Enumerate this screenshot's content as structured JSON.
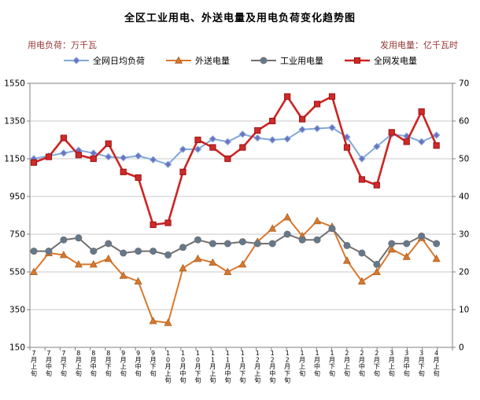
{
  "header": {
    "title": "全区工业用电、外送电量及用电负荷变化趋势图",
    "left_axis_unit": "用电负荷：万千瓦",
    "right_axis_unit": "发用电量：亿千瓦时"
  },
  "colors": {
    "title": "#000000",
    "unit_label": "#943634",
    "grid": "#c9c9c9",
    "axis": "#808080",
    "tick_label": "#000000",
    "background": "#ffffff"
  },
  "chart_data": {
    "type": "line",
    "title": "全区工业用电、外送电量及用电负荷变化趋势图",
    "grid": "horizontal",
    "legend_position": "top",
    "categories": [
      "7月上旬",
      "7月中旬",
      "7月下旬",
      "8月上旬",
      "8月中旬",
      "8月下旬",
      "9月上旬",
      "9月中旬",
      "9月下旬",
      "10月上旬",
      "10月中旬",
      "10月下旬",
      "11月上旬",
      "11月中旬",
      "11月下旬",
      "12月上旬",
      "12月中旬",
      "12月下旬",
      "1月上旬",
      "1月中旬",
      "1月下旬",
      "2月上旬",
      "2月中旬",
      "2月下旬",
      "3月上旬",
      "3月中旬",
      "3月下旬",
      "4月上旬"
    ],
    "left_axis": {
      "label": "用电负荷：万千瓦",
      "min": 150,
      "max": 1550,
      "step": 200,
      "ticks": [
        150,
        350,
        550,
        750,
        950,
        1150,
        1350,
        1550
      ]
    },
    "right_axis": {
      "label": "发用电量：亿千瓦时",
      "min": 0,
      "max": 70,
      "step": 10,
      "ticks": [
        0,
        10,
        20,
        30,
        40,
        50,
        60,
        70
      ]
    },
    "series": [
      {
        "name": "全网日均负荷",
        "axis": "left",
        "marker": "diamond",
        "color": "#7fa8dc",
        "marker_color": "#7170c0",
        "marker_stroke": "#7fa8dc",
        "width": 2,
        "values": [
          1150,
          1165,
          1180,
          1195,
          1180,
          1160,
          1155,
          1165,
          1145,
          1120,
          1200,
          1200,
          1255,
          1240,
          1280,
          1260,
          1250,
          1255,
          1305,
          1310,
          1315,
          1265,
          1150,
          1215,
          1280,
          1270,
          1240,
          1275
        ]
      },
      {
        "name": "外送电量",
        "axis": "right",
        "marker": "triangle",
        "color": "#d9772e",
        "marker_color": "#d9772e",
        "marker_stroke": "#a86324",
        "width": 2,
        "values": [
          20,
          25,
          24.5,
          22,
          22,
          23.5,
          19,
          17.5,
          7,
          6.5,
          21,
          23.5,
          22.5,
          20,
          22,
          28,
          31.5,
          34.5,
          29.5,
          33.5,
          32,
          23,
          17.5,
          20,
          26,
          24,
          29,
          23.5
        ]
      },
      {
        "name": "工业用电量",
        "axis": "right",
        "marker": "circle",
        "color": "#707070",
        "marker_color": "#62798e",
        "marker_stroke": "#707070",
        "width": 2,
        "values": [
          25.5,
          25.5,
          28.5,
          29,
          25.5,
          27.5,
          25,
          25.5,
          25.5,
          24.5,
          26.5,
          28.5,
          27.5,
          27.5,
          28,
          27.5,
          27.5,
          30,
          28.5,
          28.5,
          31.5,
          27,
          25,
          22,
          27.5,
          27.5,
          29.5,
          27.5
        ]
      },
      {
        "name": "全网发电量",
        "axis": "right",
        "marker": "square",
        "color": "#ce2323",
        "marker_color": "#ce2b2b",
        "marker_stroke": "#9e1212",
        "width": 2.6,
        "values": [
          49,
          50.5,
          55.5,
          51,
          50,
          54,
          46.5,
          45,
          32.5,
          33,
          46.5,
          55,
          53,
          50,
          53,
          57.5,
          60,
          66.5,
          60.5,
          64.5,
          66.5,
          53,
          44.5,
          43,
          57,
          54.5,
          62.5,
          53.5
        ]
      }
    ]
  }
}
